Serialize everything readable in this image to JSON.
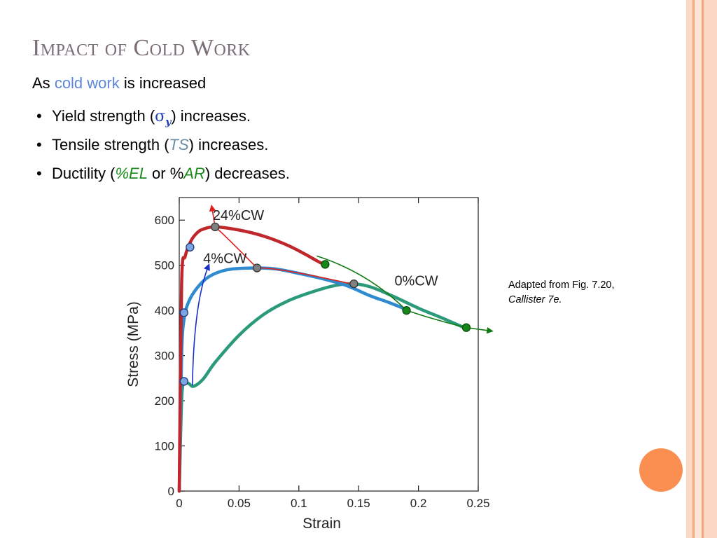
{
  "slide": {
    "title": "Impact of Cold Work",
    "subtitle_prefix": "As",
    "subtitle_highlight": "cold work",
    "subtitle_suffix": "is increased",
    "bullets": [
      {
        "text_before": "Yield strength (",
        "symbol": "σ",
        "subscript": "y",
        "text_after": ") increases."
      },
      {
        "text_before": "Tensile strength (",
        "symbol": "TS",
        "text_after": ") increases."
      },
      {
        "text_before": "Ductility (",
        "symbol": "%EL",
        "middle": " or %",
        "symbol2": "AR",
        "text_after": ") decreases."
      }
    ],
    "caption_line1": "Adapted from Fig. 7.20,",
    "caption_line2": "Callister 7e."
  },
  "colors": {
    "title": "#7b6e78",
    "highlight": "#5d86d9",
    "curve_24cw": "#c0272d",
    "curve_4cw": "#2f8bd0",
    "curve_0cw": "#2a9a7a",
    "yield_trend_arrow": "#1a2fc8",
    "ts_trend_arrow": "#e0201f",
    "ductility_trend_arrow": "#137a13",
    "accent_orange": "#fb8f52"
  },
  "chart_data": {
    "type": "line",
    "xlabel": "Strain",
    "ylabel": "Stress (MPa)",
    "xlim": [
      0,
      0.25
    ],
    "ylim": [
      0,
      650
    ],
    "x_ticks": [
      "0",
      "0.05",
      "0.1",
      "0.15",
      "0.2",
      "0.25"
    ],
    "y_ticks": [
      "0",
      "100",
      "200",
      "300",
      "400",
      "500",
      "600"
    ],
    "grid": false,
    "series": [
      {
        "name": "24%CW",
        "points": [
          [
            0,
            0
          ],
          [
            0.002,
            460
          ],
          [
            0.005,
            520
          ],
          [
            0.01,
            555
          ],
          [
            0.015,
            572
          ],
          [
            0.02,
            580
          ],
          [
            0.03,
            585
          ],
          [
            0.05,
            578
          ],
          [
            0.07,
            565
          ],
          [
            0.09,
            545
          ],
          [
            0.105,
            525
          ],
          [
            0.115,
            510
          ],
          [
            0.122,
            500
          ]
        ]
      },
      {
        "name": "4%CW",
        "points": [
          [
            0,
            0
          ],
          [
            0.002,
            300
          ],
          [
            0.004,
            380
          ],
          [
            0.008,
            420
          ],
          [
            0.015,
            450
          ],
          [
            0.025,
            475
          ],
          [
            0.04,
            490
          ],
          [
            0.06,
            494
          ],
          [
            0.08,
            492
          ],
          [
            0.1,
            482
          ],
          [
            0.12,
            470
          ],
          [
            0.14,
            455
          ],
          [
            0.16,
            432
          ],
          [
            0.175,
            418
          ],
          [
            0.19,
            402
          ]
        ]
      },
      {
        "name": "0%CW",
        "points": [
          [
            0,
            0
          ],
          [
            0.002,
            200
          ],
          [
            0.004,
            240
          ],
          [
            0.008,
            238
          ],
          [
            0.012,
            232
          ],
          [
            0.02,
            248
          ],
          [
            0.03,
            285
          ],
          [
            0.05,
            345
          ],
          [
            0.07,
            390
          ],
          [
            0.09,
            420
          ],
          [
            0.11,
            440
          ],
          [
            0.13,
            455
          ],
          [
            0.145,
            459
          ],
          [
            0.16,
            452
          ],
          [
            0.18,
            430
          ],
          [
            0.2,
            405
          ],
          [
            0.22,
            383
          ],
          [
            0.24,
            360
          ]
        ]
      }
    ],
    "markers": {
      "yield": [
        [
          0.004,
          243
        ],
        [
          0.004,
          395
        ],
        [
          0.009,
          540
        ]
      ],
      "tensile": [
        [
          0.065,
          494
        ],
        [
          0.03,
          585
        ],
        [
          0.146,
          459
        ]
      ],
      "ductility": [
        [
          0.122,
          502
        ],
        [
          0.19,
          400
        ],
        [
          0.24,
          362
        ]
      ]
    }
  }
}
